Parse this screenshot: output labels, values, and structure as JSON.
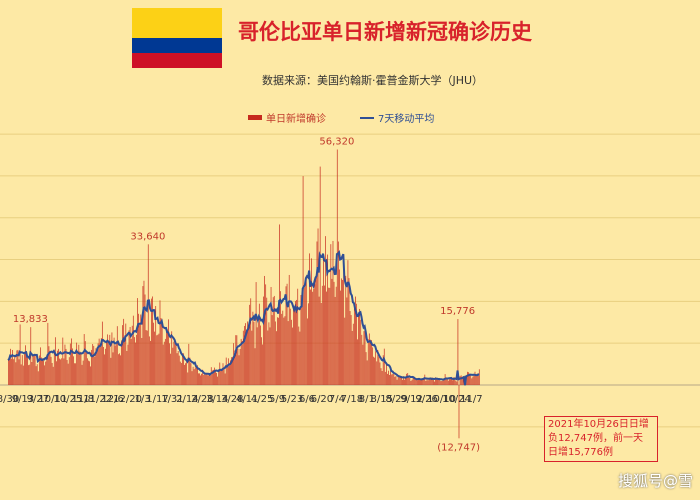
{
  "title": "哥伦比亚单日新增新冠确诊历史",
  "source": "数据来源：美国约翰斯·霍普金斯大学（JHU）",
  "flag": {
    "colors": [
      "#fcd116",
      "#003893",
      "#ce1126"
    ]
  },
  "watermark": "搜狐号@雪",
  "annotation_box": [
    "2021年10月26日日增",
    "负12,747例，前一天",
    "日增15,776例"
  ],
  "chart_data": {
    "type": "bar",
    "title": "哥伦比亚单日新增新冠确诊历史",
    "legend_position": "top",
    "series": [
      {
        "name": "单日新增确诊",
        "type": "bar",
        "color": "#c62a1e"
      },
      {
        "name": "7天移动平均",
        "type": "line",
        "color": "#2f4f95"
      }
    ],
    "x_tick_labels": [
      "8/30",
      "9/13",
      "9/27",
      "10/11",
      "10/25",
      "11/8",
      "11/22",
      "12/6",
      "12/20",
      "1/3",
      "1/17",
      "1/31",
      "2/14",
      "2/28",
      "3/14",
      "3/28",
      "4/11",
      "4/25",
      "5/9",
      "5/23",
      "6/6",
      "6/20",
      "7/4",
      "7/18",
      "8/1",
      "8/15",
      "8/29",
      "9/12",
      "9/26",
      "10/10",
      "10/24",
      "11/7"
    ],
    "ylim": [
      -15000,
      60000
    ],
    "grid": true,
    "annotations": [
      {
        "label": "13,833",
        "tick": "9/27",
        "offset_days": -7
      },
      {
        "label": "33,640",
        "tick": "1/3",
        "offset_days": 5
      },
      {
        "label": "56,320",
        "tick": "7/4",
        "offset_days": 0
      },
      {
        "label": "15,776",
        "tick": "10/24",
        "offset_days": 1
      },
      {
        "label": "(12,747)",
        "tick": "10/24",
        "offset_days": 2
      }
    ],
    "daily_approx": [
      {
        "tick": "8/30",
        "v": 8000
      },
      {
        "tick": "9/13",
        "v": 6500
      },
      {
        "tick": "9/27",
        "v": 6000
      },
      {
        "tick": "10/11",
        "v": 7000
      },
      {
        "tick": "10/25",
        "v": 8500
      },
      {
        "tick": "11/8",
        "v": 8000
      },
      {
        "tick": "11/22",
        "v": 8500
      },
      {
        "tick": "12/6",
        "v": 9500
      },
      {
        "tick": "12/20",
        "v": 13000
      },
      {
        "tick": "1/3",
        "v": 16000
      },
      {
        "tick": "1/17",
        "v": 15500
      },
      {
        "tick": "1/31",
        "v": 10000
      },
      {
        "tick": "2/14",
        "v": 5000
      },
      {
        "tick": "2/28",
        "v": 3000
      },
      {
        "tick": "3/14",
        "v": 3500
      },
      {
        "tick": "3/28",
        "v": 7000
      },
      {
        "tick": "4/11",
        "v": 15000
      },
      {
        "tick": "4/25",
        "v": 18000
      },
      {
        "tick": "5/9",
        "v": 17000
      },
      {
        "tick": "5/23",
        "v": 20000
      },
      {
        "tick": "6/6",
        "v": 25000
      },
      {
        "tick": "6/20",
        "v": 27000
      },
      {
        "tick": "7/4",
        "v": 29000
      },
      {
        "tick": "7/18",
        "v": 18000
      },
      {
        "tick": "8/1",
        "v": 10000
      },
      {
        "tick": "8/15",
        "v": 4500
      },
      {
        "tick": "8/29",
        "v": 2000
      },
      {
        "tick": "9/12",
        "v": 1500
      },
      {
        "tick": "9/26",
        "v": 1500
      },
      {
        "tick": "10/10",
        "v": 1400
      },
      {
        "tick": "10/24",
        "v": 1500
      },
      {
        "tick": "11/7",
        "v": 2500
      }
    ]
  }
}
